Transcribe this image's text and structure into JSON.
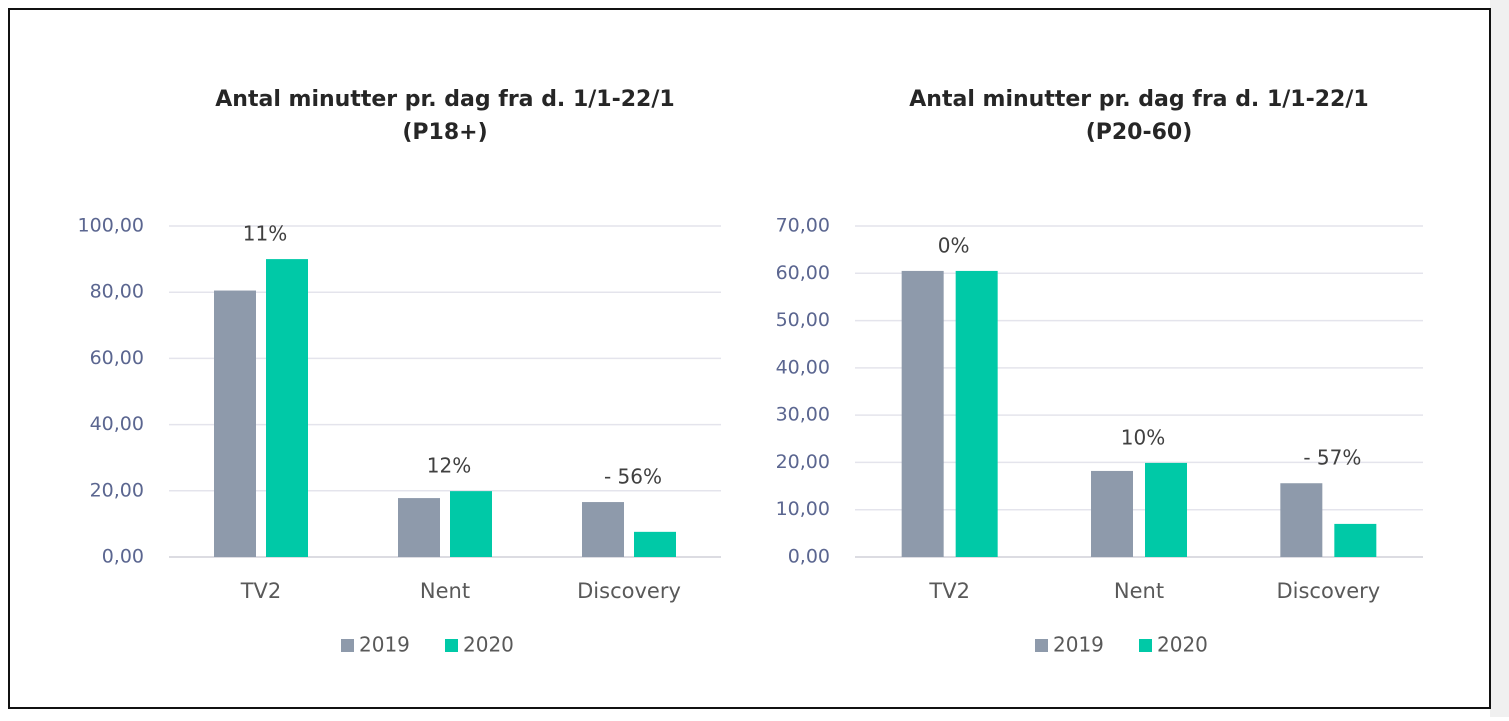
{
  "chart_data": [
    {
      "type": "bar",
      "title": [
        "Antal minutter pr. dag fra d. 1/1-22/1",
        "(P18+)"
      ],
      "categories": [
        "TV2",
        "Nent",
        "Discovery"
      ],
      "series": [
        {
          "name": "2019",
          "color": "#8e9aab",
          "values": [
            80.5,
            17.8,
            16.6
          ]
        },
        {
          "name": "2020",
          "color": "#00c9a7",
          "values": [
            90.0,
            19.9,
            7.6
          ]
        }
      ],
      "annotations": [
        "11%",
        "12%",
        "- 56%"
      ],
      "ylim": [
        0,
        100
      ],
      "yticks": [
        {
          "value": 0,
          "label": "0,00"
        },
        {
          "value": 20,
          "label": "20,00"
        },
        {
          "value": 40,
          "label": "40,00"
        },
        {
          "value": 60,
          "label": "60,00"
        },
        {
          "value": 80,
          "label": "80,00"
        },
        {
          "value": 100,
          "label": "100,00"
        }
      ],
      "grid": true,
      "legend": "bottom"
    },
    {
      "type": "bar",
      "title": [
        "Antal minutter pr. dag fra d. 1/1-22/1",
        "(P20-60)"
      ],
      "categories": [
        "TV2",
        "Nent",
        "Discovery"
      ],
      "series": [
        {
          "name": "2019",
          "color": "#8e9aab",
          "values": [
            60.5,
            18.2,
            15.6
          ]
        },
        {
          "name": "2020",
          "color": "#00c9a7",
          "values": [
            60.5,
            19.9,
            7.0
          ]
        }
      ],
      "annotations": [
        "0%",
        "10%",
        "- 57%"
      ],
      "ylim": [
        0,
        70
      ],
      "yticks": [
        {
          "value": 0,
          "label": "0,00"
        },
        {
          "value": 10,
          "label": "10,00"
        },
        {
          "value": 20,
          "label": "20,00"
        },
        {
          "value": 30,
          "label": "30,00"
        },
        {
          "value": 40,
          "label": "40,00"
        },
        {
          "value": 50,
          "label": "50,00"
        },
        {
          "value": 60,
          "label": "60,00"
        },
        {
          "value": 70,
          "label": "70,00"
        }
      ],
      "grid": true,
      "legend": "bottom"
    }
  ]
}
